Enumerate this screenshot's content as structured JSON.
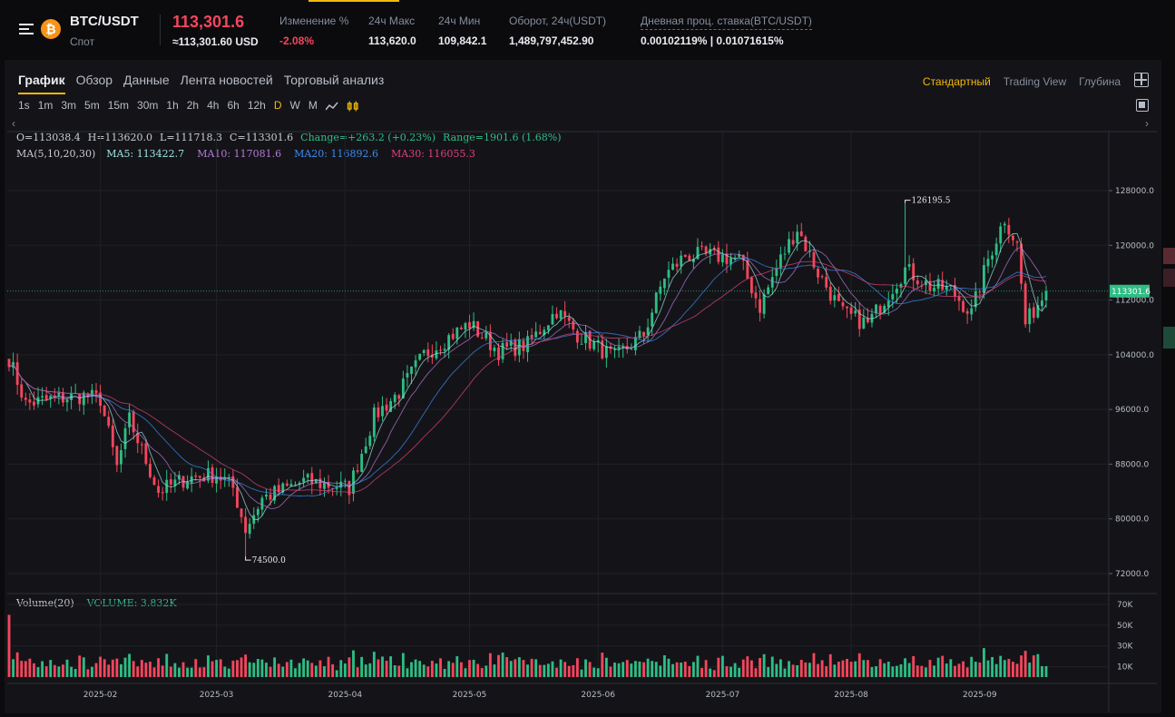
{
  "header": {
    "pair": "BTC/USDT",
    "coin_symbol": "₿",
    "market": "Спот",
    "last_price": "113,301.6",
    "last_price_usd": "≈113,301.60 USD",
    "stats": [
      {
        "label": "Изменение %",
        "value": "-2.08%",
        "negative": true
      },
      {
        "label": "24ч Макс",
        "value": "113,620.0",
        "negative": false
      },
      {
        "label": "24ч Мин",
        "value": "109,842.1",
        "negative": false
      },
      {
        "label": "Оборот, 24ч(USDT)",
        "value": "1,489,797,452.90",
        "negative": false
      },
      {
        "label": "Дневная проц. ставка(BTC/USDT)",
        "value": "0.00102119% | 0.01071615%",
        "negative": false
      }
    ]
  },
  "tabs": [
    "График",
    "Обзор",
    "Данные",
    "Лента новостей",
    "Торговый анализ"
  ],
  "active_tab": 0,
  "views": [
    "Стандартный",
    "Trading View",
    "Глубина"
  ],
  "active_view": 0,
  "intervals": [
    "1s",
    "1m",
    "3m",
    "5m",
    "15m",
    "30m",
    "1h",
    "2h",
    "4h",
    "6h",
    "12h",
    "D",
    "W",
    "M"
  ],
  "active_interval": "D",
  "ohlc": {
    "open": "O=113038.4",
    "high": "H=113620.0",
    "low": "L=111718.3",
    "close": "C=113301.6",
    "change": "Change=+263.2 (+0.23%)",
    "range": "Range=1901.6 (1.68%)"
  },
  "ma": {
    "title": "MA(5,10,20,30)",
    "ma5": "MA5: 113422.7",
    "ma10": "MA10: 117081.6",
    "ma20": "MA20: 116892.6",
    "ma30": "MA30: 116055.3"
  },
  "volume": {
    "title": "Volume(20)",
    "value": "VOLUME: 3.832K"
  },
  "colors": {
    "up": "#2ebd85",
    "down": "#f6465d",
    "accent": "#f0b90b",
    "ma5": "#9ce3e3",
    "ma10": "#b47ad8",
    "ma20": "#3d8bf0",
    "ma30": "#e0417f"
  },
  "chart_data": {
    "type": "candlestick",
    "y_ticks": [
      "128000.0",
      "120000.0",
      "112000.0",
      "104000.0",
      "96000.0",
      "88000.0",
      "80000.0",
      "72000.0"
    ],
    "y_tick_values": [
      128000,
      120000,
      112000,
      104000,
      96000,
      88000,
      80000,
      72000
    ],
    "ylim": [
      70000,
      130000
    ],
    "volume_ticks": [
      "70K",
      "50K",
      "30K",
      "10K"
    ],
    "volume_tick_values": [
      70000,
      50000,
      30000,
      10000
    ],
    "x_ticks": [
      "2025-02",
      "2025-03",
      "2025-04",
      "2025-05",
      "2025-06",
      "2025-07",
      "2025-08",
      "2025-09"
    ],
    "x_tick_dates": [
      "2025-02-01",
      "2025-03-01",
      "2025-04-01",
      "2025-05-01",
      "2025-06-01",
      "2025-07-01",
      "2025-08-01",
      "2025-09-01"
    ],
    "first_date": "2025-01-10",
    "last_date": "2025-09-17",
    "last_price": 113301.6,
    "last_price_label": "113301.6",
    "high_marker": {
      "value": 126195.5,
      "label": "126195.5",
      "date": "2025-08-14"
    },
    "low_marker": {
      "value": 74500.0,
      "label": "74500.0",
      "date": "2025-03-08"
    },
    "close_waypoints": [
      [
        "2025-01-10",
        103500
      ],
      [
        "2025-01-14",
        96800
      ],
      [
        "2025-01-20",
        97500
      ],
      [
        "2025-01-28",
        98000
      ],
      [
        "2025-02-01",
        97500
      ],
      [
        "2025-02-05",
        87500
      ],
      [
        "2025-02-08",
        94500
      ],
      [
        "2025-02-15",
        84000
      ],
      [
        "2025-02-22",
        86000
      ],
      [
        "2025-03-01",
        86500
      ],
      [
        "2025-03-05",
        84500
      ],
      [
        "2025-03-08",
        78500
      ],
      [
        "2025-03-12",
        83000
      ],
      [
        "2025-03-22",
        85500
      ],
      [
        "2025-04-02",
        84500
      ],
      [
        "2025-04-08",
        95000
      ],
      [
        "2025-04-14",
        98500
      ],
      [
        "2025-04-20",
        104000
      ],
      [
        "2025-04-27",
        107000
      ],
      [
        "2025-05-01",
        108500
      ],
      [
        "2025-05-08",
        104500
      ],
      [
        "2025-05-15",
        105500
      ],
      [
        "2025-05-22",
        110500
      ],
      [
        "2025-05-27",
        107000
      ],
      [
        "2025-06-05",
        103500
      ],
      [
        "2025-06-12",
        107000
      ],
      [
        "2025-06-17",
        115500
      ],
      [
        "2025-06-22",
        118500
      ],
      [
        "2025-06-28",
        118500
      ],
      [
        "2025-07-05",
        118000
      ],
      [
        "2025-07-10",
        111000
      ],
      [
        "2025-07-15",
        118000
      ],
      [
        "2025-07-19",
        122500
      ],
      [
        "2025-07-24",
        116000
      ],
      [
        "2025-07-30",
        110000
      ],
      [
        "2025-08-05",
        108500
      ],
      [
        "2025-08-10",
        113000
      ],
      [
        "2025-08-14",
        116500
      ],
      [
        "2025-08-20",
        114000
      ],
      [
        "2025-08-25",
        113500
      ],
      [
        "2025-08-30",
        110000
      ],
      [
        "2025-09-03",
        118000
      ],
      [
        "2025-09-07",
        124000
      ],
      [
        "2025-09-10",
        120000
      ],
      [
        "2025-09-12",
        108500
      ],
      [
        "2025-09-15",
        111500
      ],
      [
        "2025-09-17",
        113301
      ]
    ]
  }
}
